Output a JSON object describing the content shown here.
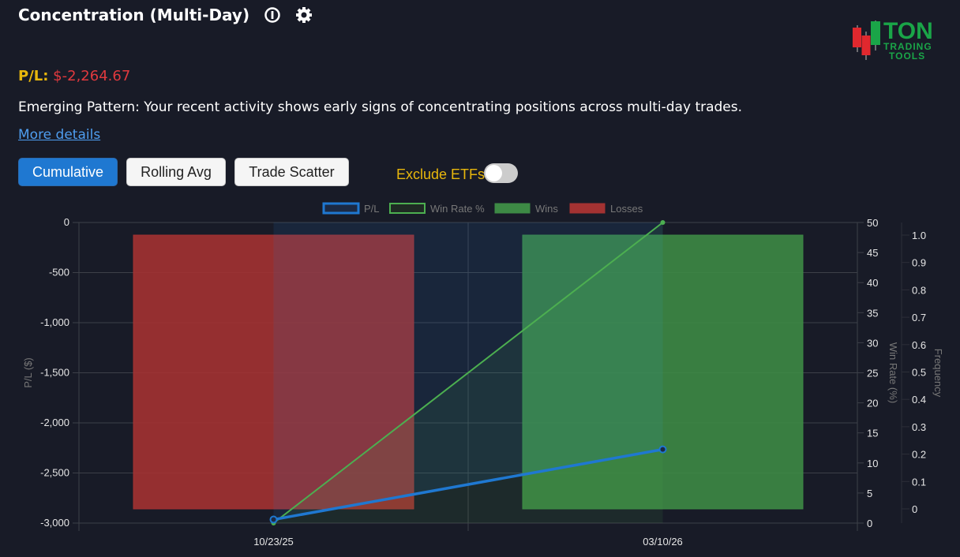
{
  "header": {
    "title": "Concentration (Multi-Day)",
    "info_icon": "info-icon",
    "settings_icon": "gear-icon"
  },
  "logo": {
    "text_main": "TON",
    "text_sub1": "TRADING",
    "text_sub2": "TOOLS"
  },
  "summary": {
    "pl_label": "P/L:",
    "pl_value": "$-2,264.67"
  },
  "description": "Emerging Pattern: Your recent activity shows early signs of concentrating positions across multi-day trades.",
  "more_details": "More details",
  "tabs": [
    {
      "label": "Cumulative",
      "active": true
    },
    {
      "label": "Rolling Avg",
      "active": false
    },
    {
      "label": "Trade Scatter",
      "active": false
    }
  ],
  "exclude_etfs": {
    "label": "Exclude ETFs",
    "on": false
  },
  "colors": {
    "pl": "#1f78d1",
    "win_rate": "#4caf50",
    "wins": "#3d8a45",
    "losses": "#a33232"
  },
  "chart_data": {
    "type": "bar+line",
    "categories": [
      "10/23/25",
      "03/10/26"
    ],
    "legend": [
      "P/L",
      "Win Rate %",
      "Wins",
      "Losses"
    ],
    "legend_position": "top",
    "series": [
      {
        "name": "P/L",
        "type": "line",
        "axis": "left",
        "values": [
          -2965,
          -2264.67
        ]
      },
      {
        "name": "Win Rate %",
        "type": "line",
        "axis": "right1",
        "values": [
          0,
          50
        ]
      },
      {
        "name": "Wins",
        "type": "bar",
        "axis": "right2",
        "values": [
          0,
          1
        ]
      },
      {
        "name": "Losses",
        "type": "bar",
        "axis": "right2",
        "values": [
          1,
          0
        ]
      }
    ],
    "y_left": {
      "label": "P/L ($)",
      "range": [
        -3000,
        0
      ],
      "ticks": [
        "0",
        "-500",
        "-1,000",
        "-1,500",
        "-2,000",
        "-2,500",
        "-3,000"
      ]
    },
    "y_right1": {
      "label": "Win Rate (%)",
      "range": [
        0,
        50
      ],
      "ticks": [
        "0",
        "5",
        "10",
        "15",
        "20",
        "25",
        "30",
        "35",
        "40",
        "45",
        "50"
      ]
    },
    "y_right2": {
      "label": "Frequency",
      "range": [
        0,
        1
      ],
      "ticks": [
        "0",
        "0.1",
        "0.2",
        "0.3",
        "0.4",
        "0.5",
        "0.6",
        "0.7",
        "0.8",
        "0.9",
        "1.0"
      ]
    },
    "grid": true
  }
}
